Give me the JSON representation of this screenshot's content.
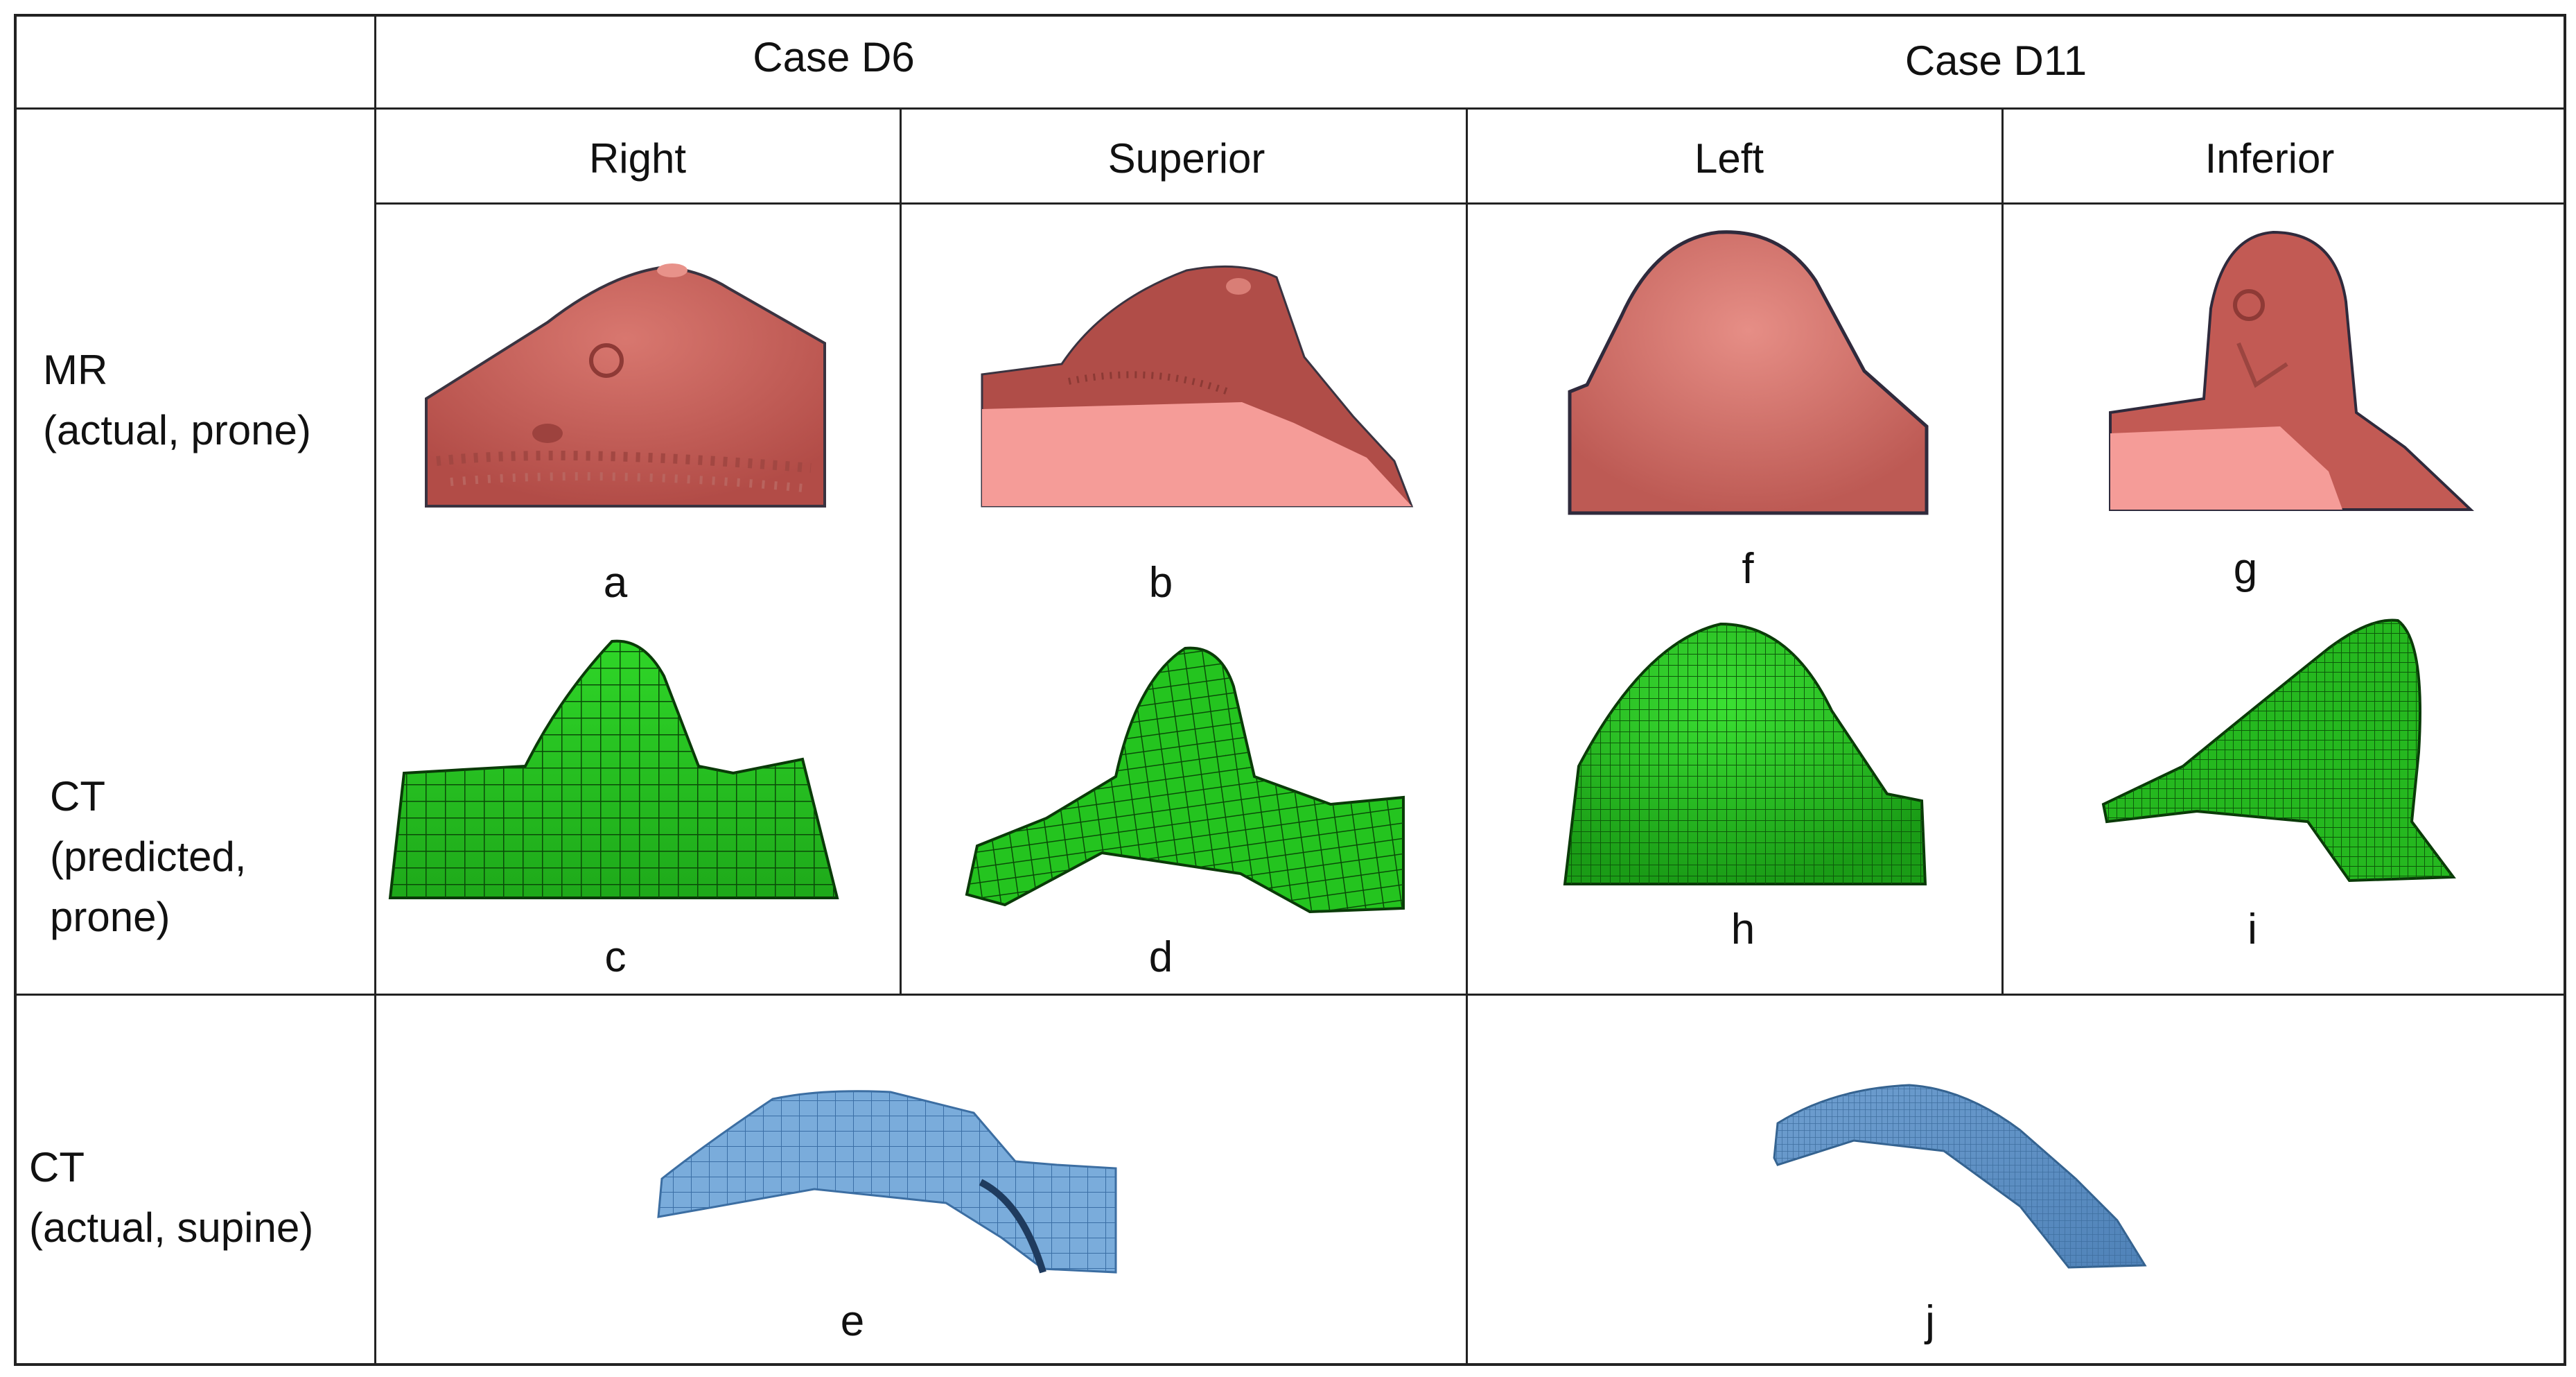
{
  "table": {
    "cases": [
      "Case D6",
      "Case D11"
    ],
    "views": [
      "Right",
      "Superior",
      "Left",
      "Inferior"
    ],
    "rows": [
      {
        "label_lines": [
          "MR",
          "(actual, prone)"
        ],
        "panel_labels": [
          "a",
          "b",
          "f",
          "g"
        ]
      },
      {
        "label_lines": [
          "CT",
          "(predicted,",
          "prone)"
        ],
        "panel_labels": [
          "c",
          "d",
          "h",
          "i"
        ]
      },
      {
        "label_lines": [
          "CT",
          "(actual, supine)"
        ],
        "panel_labels": [
          "e",
          "j"
        ]
      }
    ]
  },
  "colors": {
    "mr_surface": "#c8605a",
    "mr_cut_face": "#f59c98",
    "ct_predicted_mesh": "#25c41f",
    "ct_actual_mesh": "#6a9fd2",
    "grid_line": "#222222"
  }
}
